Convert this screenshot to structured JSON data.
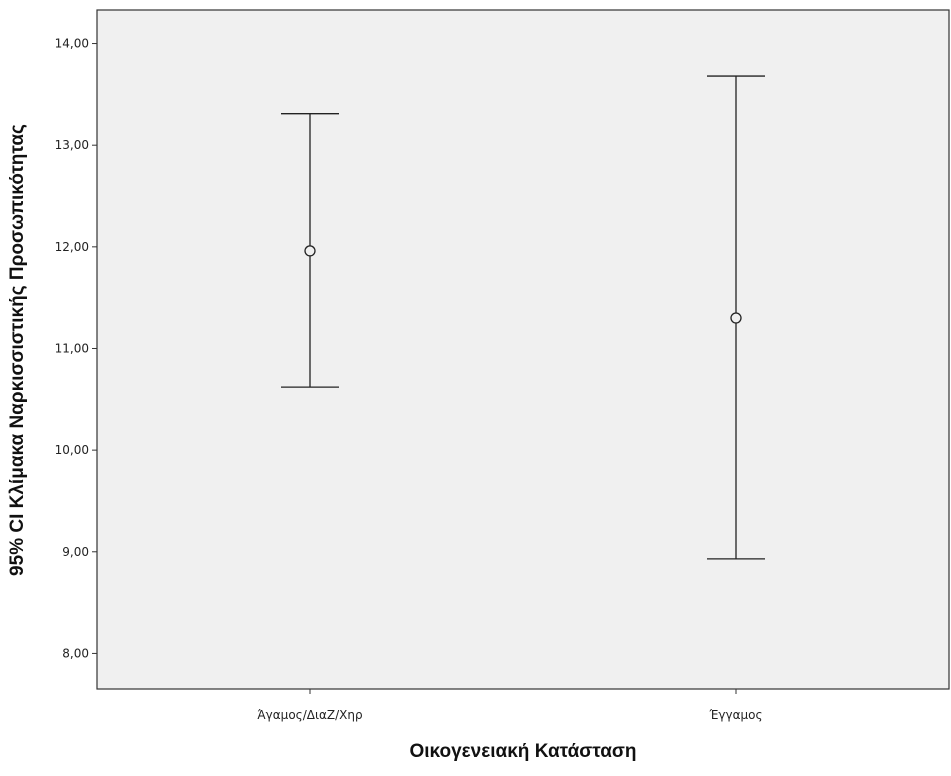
{
  "chart_data": {
    "type": "errorbar",
    "xlabel": "Οικογενειακή Κατάσταση",
    "ylabel": "95% CI Κλίμακα Ναρκισσιστικής Προσωπικότητας",
    "ylim": [
      7.65,
      14.33
    ],
    "yticks": [
      8,
      9,
      10,
      11,
      12,
      13,
      14
    ],
    "ytick_labels": [
      "8,00",
      "9,00",
      "10,00",
      "11,00",
      "12,00",
      "13,00",
      "14,00"
    ],
    "categories": [
      "Άγαμος/ΔιαΖ/Χηρ",
      "Έγγαμος"
    ],
    "means": [
      11.96,
      11.3
    ],
    "lower": [
      10.62,
      8.93
    ],
    "upper": [
      13.31,
      13.68
    ],
    "grid": false,
    "legend": "none"
  },
  "colors": {
    "plot_background": "#f0f0f0",
    "axis": "#333333",
    "marks": "#222222"
  }
}
